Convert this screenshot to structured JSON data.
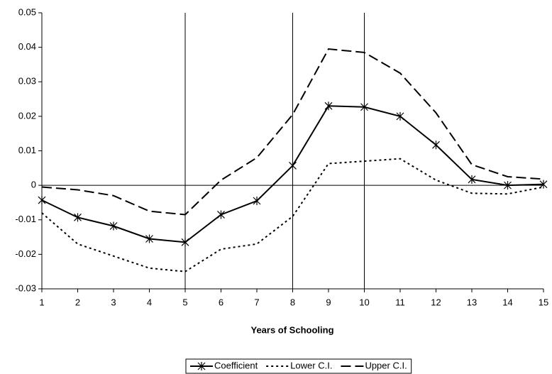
{
  "chart_data": {
    "type": "line",
    "x_label": "Years of Schooling",
    "x": [
      1,
      2,
      3,
      4,
      5,
      6,
      7,
      8,
      9,
      10,
      11,
      12,
      13,
      14,
      15
    ],
    "xlim": [
      1,
      15
    ],
    "xticks": [
      1,
      2,
      3,
      4,
      5,
      6,
      7,
      8,
      9,
      10,
      11,
      12,
      13,
      14,
      15
    ],
    "ylim": [
      -0.03,
      0.05
    ],
    "yticks": [
      -0.03,
      -0.02,
      -0.01,
      0,
      0.01,
      0.02,
      0.03,
      0.04,
      0.05
    ],
    "reference_lines_x": [
      5,
      8,
      10
    ],
    "reference_lines_y": [
      0
    ],
    "legend": "bottom",
    "series": [
      {
        "name": "Coefficient",
        "color": "#000000",
        "dash": "solid",
        "marker": "asterisk",
        "values": [
          -0.0043,
          -0.0093,
          -0.0118,
          -0.0155,
          -0.0165,
          -0.0085,
          -0.0045,
          0.0057,
          0.023,
          0.0227,
          0.02,
          0.0117,
          0.0017,
          0.0,
          0.0003
        ]
      },
      {
        "name": "Lower C.I.",
        "color": "#000000",
        "dash": "dotted",
        "marker": "none",
        "values": [
          -0.008,
          -0.017,
          -0.0205,
          -0.024,
          -0.025,
          -0.0185,
          -0.017,
          -0.009,
          0.0063,
          0.007,
          0.0077,
          0.0015,
          -0.0023,
          -0.0025,
          -0.0005
        ]
      },
      {
        "name": "Upper C.I.",
        "color": "#000000",
        "dash": "dashed",
        "marker": "none",
        "values": [
          -0.0005,
          -0.0013,
          -0.003,
          -0.0075,
          -0.0085,
          0.0015,
          0.008,
          0.0205,
          0.0395,
          0.0385,
          0.0325,
          0.021,
          0.006,
          0.0025,
          0.0018
        ]
      }
    ]
  }
}
